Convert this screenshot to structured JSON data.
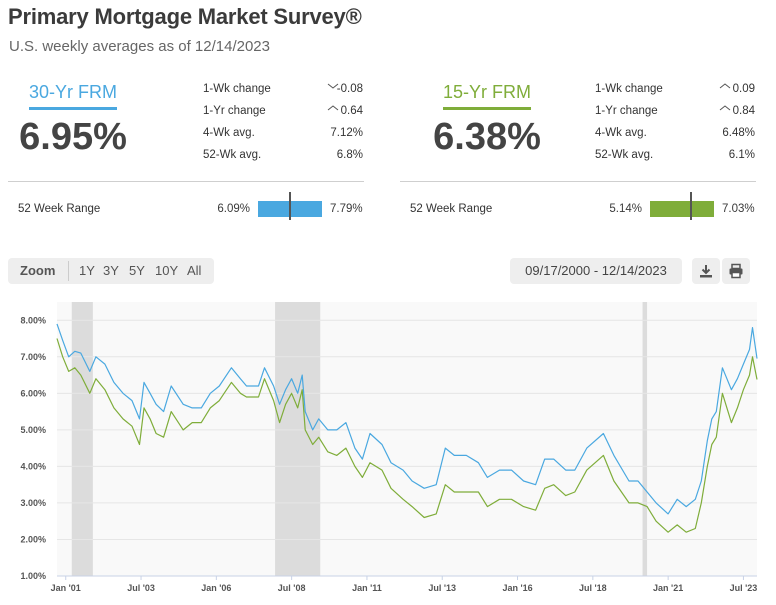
{
  "header": {
    "title": "Primary Mortgage Market Survey®",
    "subtitle": "U.S. weekly averages as of 12/14/2023"
  },
  "colors": {
    "frm30": "#4aa8e0",
    "frm15": "#7fad3a"
  },
  "frm30": {
    "label": "30-Yr FRM",
    "rate": "6.95%",
    "stats": [
      {
        "label": "1-Wk change",
        "value": "-0.08",
        "direction": "down"
      },
      {
        "label": "1-Yr change",
        "value": "0.64",
        "direction": "up"
      },
      {
        "label": "4-Wk avg.",
        "value": "7.12%"
      },
      {
        "label": "52-Wk avg.",
        "value": "6.8%"
      }
    ],
    "range_label": "52 Week Range",
    "range_low": "6.09%",
    "range_high": "7.79%"
  },
  "frm15": {
    "label": "15-Yr FRM",
    "rate": "6.38%",
    "stats": [
      {
        "label": "1-Wk change",
        "value": "0.09",
        "direction": "up"
      },
      {
        "label": "1-Yr change",
        "value": "0.84",
        "direction": "up"
      },
      {
        "label": "4-Wk avg.",
        "value": "6.48%"
      },
      {
        "label": "52-Wk avg.",
        "value": "6.1%"
      }
    ],
    "range_label": "52 Week Range",
    "range_low": "5.14%",
    "range_high": "7.03%"
  },
  "toolbar": {
    "zoom_label": "Zoom",
    "zoom_options": [
      "1Y",
      "3Y",
      "5Y",
      "10Y",
      "All"
    ],
    "date_range": "09/17/2000 - 12/14/2023"
  },
  "chart_data": {
    "type": "line",
    "title": "",
    "xlabel": "",
    "ylabel": "",
    "xlim": [
      2000.71,
      2023.95
    ],
    "ylim": [
      1.0,
      8.5
    ],
    "y_ticks": [
      "1.00%",
      "2.00%",
      "3.00%",
      "4.00%",
      "5.00%",
      "6.00%",
      "7.00%",
      "8.00%"
    ],
    "x_ticks": [
      {
        "label": "Jan '01",
        "year": 2001.0
      },
      {
        "label": "Jul '03",
        "year": 2003.5
      },
      {
        "label": "Jan '06",
        "year": 2006.0
      },
      {
        "label": "Jul '08",
        "year": 2008.5
      },
      {
        "label": "Jan '11",
        "year": 2011.0
      },
      {
        "label": "Jul '13",
        "year": 2013.5
      },
      {
        "label": "Jan '16",
        "year": 2016.0
      },
      {
        "label": "Jul '18",
        "year": 2018.5
      },
      {
        "label": "Jan '21",
        "year": 2021.0
      },
      {
        "label": "Jul '23",
        "year": 2023.5
      }
    ],
    "shaded_regions": [
      [
        2001.2,
        2001.9
      ],
      [
        2007.95,
        2009.45
      ],
      [
        2020.15,
        2020.3
      ]
    ],
    "series": [
      {
        "name": "30-Yr FRM",
        "x": [
          2000.71,
          2000.9,
          2001.1,
          2001.3,
          2001.5,
          2001.8,
          2002.0,
          2002.3,
          2002.6,
          2002.9,
          2003.2,
          2003.45,
          2003.6,
          2003.8,
          2004.0,
          2004.25,
          2004.5,
          2004.9,
          2005.2,
          2005.5,
          2005.8,
          2006.1,
          2006.5,
          2006.8,
          2007.0,
          2007.4,
          2007.6,
          2007.9,
          2008.1,
          2008.3,
          2008.5,
          2008.7,
          2008.85,
          2008.95,
          2009.2,
          2009.4,
          2009.7,
          2010.0,
          2010.3,
          2010.6,
          2010.85,
          2011.1,
          2011.5,
          2011.8,
          2012.2,
          2012.5,
          2012.9,
          2013.3,
          2013.6,
          2013.9,
          2014.3,
          2014.7,
          2015.0,
          2015.4,
          2015.8,
          2016.2,
          2016.6,
          2016.9,
          2017.2,
          2017.6,
          2017.9,
          2018.3,
          2018.85,
          2019.2,
          2019.7,
          2020.0,
          2020.3,
          2020.6,
          2021.0,
          2021.3,
          2021.6,
          2021.9,
          2022.1,
          2022.3,
          2022.45,
          2022.6,
          2022.8,
          2022.95,
          2023.1,
          2023.3,
          2023.5,
          2023.7,
          2023.8,
          2023.95
        ],
        "values": [
          7.9,
          7.45,
          7.0,
          7.15,
          7.1,
          6.6,
          7.0,
          6.8,
          6.3,
          6.0,
          5.8,
          5.3,
          6.3,
          6.0,
          5.7,
          5.5,
          6.2,
          5.7,
          5.6,
          5.6,
          6.0,
          6.2,
          6.7,
          6.4,
          6.2,
          6.2,
          6.7,
          6.2,
          5.7,
          6.1,
          6.4,
          6.0,
          6.5,
          5.5,
          5.0,
          5.3,
          5.0,
          5.0,
          5.2,
          4.5,
          4.2,
          4.9,
          4.6,
          4.1,
          3.9,
          3.6,
          3.4,
          3.5,
          4.5,
          4.3,
          4.3,
          4.1,
          3.7,
          3.9,
          3.9,
          3.6,
          3.5,
          4.2,
          4.2,
          3.9,
          3.9,
          4.5,
          4.9,
          4.3,
          3.6,
          3.6,
          3.3,
          3.0,
          2.7,
          3.1,
          2.9,
          3.1,
          3.6,
          4.7,
          5.3,
          5.5,
          6.7,
          6.4,
          6.1,
          6.4,
          6.8,
          7.2,
          7.8,
          6.95
        ]
      },
      {
        "name": "15-Yr FRM",
        "x": [
          2000.71,
          2000.9,
          2001.1,
          2001.3,
          2001.5,
          2001.8,
          2002.0,
          2002.3,
          2002.6,
          2002.9,
          2003.2,
          2003.45,
          2003.6,
          2003.8,
          2004.0,
          2004.25,
          2004.5,
          2004.9,
          2005.2,
          2005.5,
          2005.8,
          2006.1,
          2006.5,
          2006.8,
          2007.0,
          2007.4,
          2007.6,
          2007.9,
          2008.1,
          2008.3,
          2008.5,
          2008.7,
          2008.85,
          2008.95,
          2009.2,
          2009.4,
          2009.7,
          2010.0,
          2010.3,
          2010.6,
          2010.85,
          2011.1,
          2011.5,
          2011.8,
          2012.2,
          2012.5,
          2012.9,
          2013.3,
          2013.6,
          2013.9,
          2014.3,
          2014.7,
          2015.0,
          2015.4,
          2015.8,
          2016.2,
          2016.6,
          2016.9,
          2017.2,
          2017.6,
          2017.9,
          2018.3,
          2018.85,
          2019.2,
          2019.7,
          2020.0,
          2020.3,
          2020.6,
          2021.0,
          2021.3,
          2021.6,
          2021.9,
          2022.1,
          2022.3,
          2022.45,
          2022.6,
          2022.8,
          2022.95,
          2023.1,
          2023.3,
          2023.5,
          2023.7,
          2023.8,
          2023.95
        ],
        "values": [
          7.5,
          7.0,
          6.6,
          6.7,
          6.5,
          6.0,
          6.4,
          6.1,
          5.6,
          5.3,
          5.1,
          4.6,
          5.6,
          5.3,
          4.9,
          4.8,
          5.5,
          5.0,
          5.2,
          5.2,
          5.6,
          5.8,
          6.3,
          6.0,
          5.9,
          5.9,
          6.4,
          5.8,
          5.2,
          5.7,
          6.0,
          5.6,
          6.1,
          5.0,
          4.6,
          4.8,
          4.4,
          4.3,
          4.5,
          4.0,
          3.7,
          4.1,
          3.9,
          3.4,
          3.1,
          2.9,
          2.6,
          2.7,
          3.5,
          3.3,
          3.3,
          3.3,
          2.9,
          3.1,
          3.1,
          2.9,
          2.8,
          3.4,
          3.5,
          3.2,
          3.3,
          3.9,
          4.3,
          3.6,
          3.0,
          3.0,
          2.9,
          2.5,
          2.2,
          2.4,
          2.2,
          2.3,
          3.0,
          4.0,
          4.6,
          4.8,
          6.0,
          5.6,
          5.2,
          5.6,
          6.1,
          6.5,
          7.0,
          6.38
        ]
      }
    ]
  }
}
